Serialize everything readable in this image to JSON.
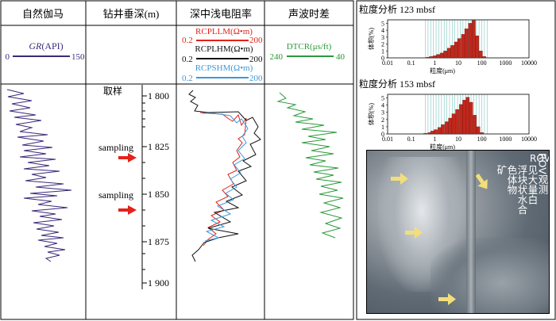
{
  "columns": {
    "gr": {
      "title": "自然伽马",
      "label_italic": "GR",
      "label_unit": "(API)",
      "min": "0",
      "max": "150",
      "color": "#3b2a7a"
    },
    "depth": {
      "title": "钻井垂深(m)",
      "sample_label": "取样",
      "sampling_label": "sampling",
      "ticks": [
        "1 800",
        "1 825",
        "1 850",
        "1 875",
        "1 900"
      ]
    },
    "res": {
      "title": "深中浅电阻率",
      "curves": [
        {
          "name": "RCPLLM(Ω•m)",
          "min": "0.2",
          "max": "200",
          "color": "#e2231a"
        },
        {
          "name": "RCPLHM(Ω•m)",
          "min": "0.2",
          "max": "200",
          "color": "#111111"
        },
        {
          "name": "RCPSHM(Ω•m)",
          "min": "0.2",
          "max": "200",
          "color": "#3b9ad9"
        }
      ]
    },
    "sonic": {
      "title": "声波时差",
      "label": "DTCR(μs/ft)",
      "min": "240",
      "max": "40",
      "color": "#2a9a3a"
    }
  },
  "grain_charts": [
    {
      "title": "粒度分析  123 mbsf",
      "ylabel": "体积(%)",
      "xlabel": "粒度(μm)",
      "yticks": [
        "0",
        "1",
        "2",
        "3",
        "4",
        "5"
      ],
      "xticks": [
        "0.01",
        "0.1",
        "1",
        "10",
        "100",
        "1000",
        "10000"
      ]
    },
    {
      "title": "粒度分析  153 mbsf",
      "ylabel": "体积(%)",
      "xlabel": "粒度(μm)",
      "yticks": [
        "0",
        "1",
        "2",
        "3",
        "4",
        "5"
      ],
      "xticks": [
        "0.01",
        "0.1",
        "1",
        "10",
        "100",
        "1000",
        "10000"
      ]
    }
  ],
  "chart_data": [
    {
      "type": "bar",
      "title": "粒度分析  123 mbsf",
      "xlabel": "粒度(μm)",
      "ylabel": "体积(%)",
      "ylim": [
        0,
        5.5
      ],
      "xscale": "log",
      "xlim": [
        0.01,
        10000
      ],
      "x": [
        0.5,
        0.7,
        1,
        1.4,
        2,
        2.8,
        4,
        5.6,
        8,
        11,
        16,
        22,
        32,
        45,
        63,
        90,
        125
      ],
      "values": [
        0.1,
        0.2,
        0.3,
        0.5,
        0.7,
        1.0,
        1.4,
        1.8,
        2.3,
        2.8,
        3.4,
        4.2,
        5.0,
        5.4,
        3.2,
        1.0,
        0.2
      ]
    },
    {
      "type": "bar",
      "title": "粒度分析  153 mbsf",
      "xlabel": "粒度(μm)",
      "ylabel": "体积(%)",
      "ylim": [
        0,
        5.5
      ],
      "xscale": "log",
      "xlim": [
        0.01,
        10000
      ],
      "x": [
        0.4,
        0.6,
        0.8,
        1.1,
        1.6,
        2.2,
        3.2,
        4.5,
        6.3,
        9,
        13,
        18,
        25,
        35,
        50,
        70,
        100
      ],
      "values": [
        0.1,
        0.2,
        0.4,
        0.6,
        0.9,
        1.3,
        1.7,
        2.2,
        2.8,
        3.4,
        4.1,
        4.7,
        5.1,
        4.4,
        2.6,
        1.0,
        0.2
      ]
    }
  ],
  "photo": {
    "caption_right": "ROV观测",
    "caption_lines": [
      "见大量白",
      "浮块状水合",
      "色体物",
      "矿"
    ]
  }
}
